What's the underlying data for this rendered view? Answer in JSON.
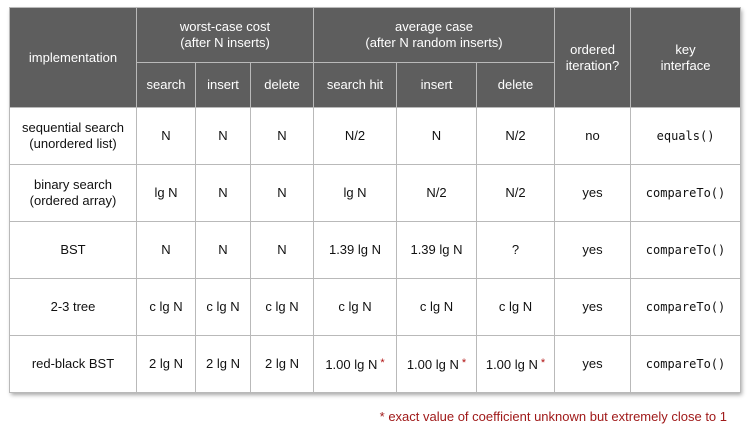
{
  "header": {
    "implementation": "implementation",
    "worst_case": {
      "line1": "worst-case cost",
      "line2": "(after N inserts)"
    },
    "average_case": {
      "line1": "average case",
      "line2": "(after N random inserts)"
    },
    "ordered": {
      "line1": "ordered",
      "line2": "iteration?"
    },
    "key": {
      "line1": "key",
      "line2": "interface"
    },
    "sub": {
      "wc_search": "search",
      "wc_insert": "insert",
      "wc_delete": "delete",
      "avg_search_hit": "search hit",
      "avg_insert": "insert",
      "avg_delete": "delete"
    }
  },
  "rows": [
    {
      "impl_line1": "sequential search",
      "impl_line2": "(unordered list)",
      "wc_search": "N",
      "wc_insert": "N",
      "wc_delete": "N",
      "avg_search_hit": "N/2",
      "avg_insert": "N",
      "avg_delete": "N/2",
      "ordered": "no",
      "key": "equals()"
    },
    {
      "impl_line1": "binary search",
      "impl_line2": "(ordered array)",
      "wc_search": "lg N",
      "wc_insert": "N",
      "wc_delete": "N",
      "avg_search_hit": "lg N",
      "avg_insert": "N/2",
      "avg_delete": "N/2",
      "ordered": "yes",
      "key": "compareTo()"
    },
    {
      "impl_line1": "BST",
      "impl_line2": "",
      "wc_search": "N",
      "wc_insert": "N",
      "wc_delete": "N",
      "avg_search_hit": "1.39 lg N",
      "avg_insert": "1.39 lg N",
      "avg_delete": "?",
      "ordered": "yes",
      "key": "compareTo()"
    },
    {
      "impl_line1": "2-3 tree",
      "impl_line2": "",
      "wc_search": "c lg N",
      "wc_insert": "c lg N",
      "wc_delete": "c lg N",
      "avg_search_hit": "c lg N",
      "avg_insert": "c lg N",
      "avg_delete": "c lg N",
      "ordered": "yes",
      "key": "compareTo()"
    },
    {
      "impl_line1": "red-black BST",
      "impl_line2": "",
      "wc_search": "2 lg N",
      "wc_insert": "2 lg N",
      "wc_delete": "2 lg N",
      "avg_search_hit": "1.00 lg N",
      "avg_insert": "1.00 lg N",
      "avg_delete": "1.00 lg N",
      "ordered": "yes",
      "key": "compareTo()"
    }
  ],
  "star_mark": "*",
  "footnote": "* exact value of coefficient unknown but extremely close to 1",
  "colors": {
    "header_bg": "#5e5e5e",
    "grid": "#b9b9b9",
    "footnote": "#a01a1a"
  }
}
